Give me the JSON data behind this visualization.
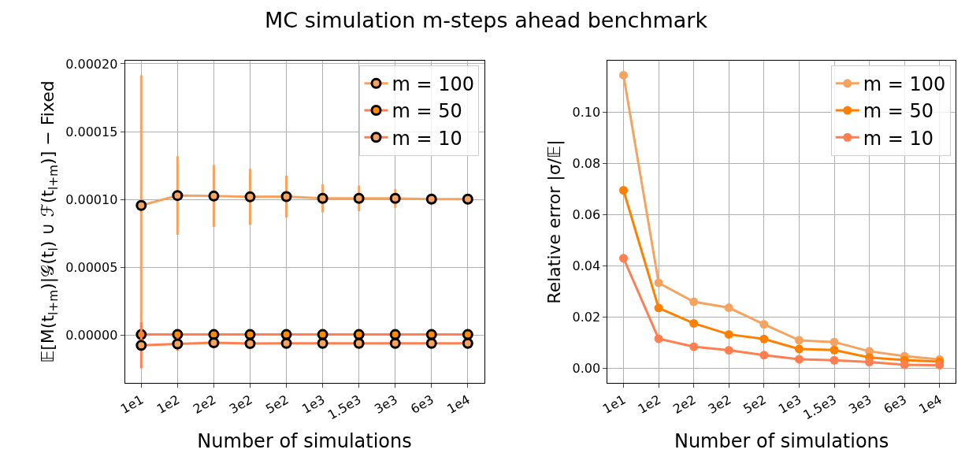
{
  "chart_data": [
    {
      "type": "line",
      "title": "MC simulation m-steps ahead benchmark",
      "xlabel": "Number of simulations",
      "ylabel": "𝔼[M(t$_{l+m}$)|𝒢(t$_{l}$) ∪ ℱ(t$_{l+m}$)] − Fixed",
      "categories": [
        "1e1",
        "1e2",
        "2e2",
        "3e2",
        "5e2",
        "1e3",
        "1.5e3",
        "3e3",
        "6e3",
        "1e4"
      ],
      "series": [
        {
          "name": "m = 100",
          "color": "#f4a460",
          "colors": [
            "#f4a460",
            "#f4a460",
            "#f4a460",
            "#f4a460",
            "#f4a460",
            "#f4a460",
            "#f4a460",
            "#f4a460",
            "#f4a460",
            "#f4a460"
          ],
          "values": [
            9.56e-05,
            0.0001029,
            0.0001025,
            0.0001019,
            0.0001021,
            0.0001008,
            0.0001008,
            0.0001008,
            0.0001002,
            0.0001002
          ],
          "errors": [
            9.6e-05,
            2.9e-05,
            2.28e-05,
            2.07e-05,
            1.54e-05,
            1.03e-05,
            9.4e-06,
            6.9e-06,
            1.5e-06,
            1.5e-06
          ]
        },
        {
          "name": "m = 50",
          "color": "#ff7f50",
          "colors": [
            "#ff8c00",
            "#ff8c00",
            "#ff8c00",
            "#ff8c00",
            "#ff8c00",
            "#ff8c00",
            "#ff8c00",
            "#ff8c00",
            "#ff8c00",
            "#ff8c00"
          ],
          "values": [
            4e-07,
            4e-07,
            4e-07,
            4e-07,
            4e-07,
            4e-07,
            4e-07,
            4e-07,
            4e-07,
            4e-07
          ]
        },
        {
          "name": "m = 10",
          "color": "#ff7f50",
          "colors": [
            "#f4a460",
            "#f4a460",
            "#f4a460",
            "#f4a460",
            "#f4a460",
            "#f4a460",
            "#f4a460",
            "#f4a460",
            "#f4a460",
            "#f4a460"
          ],
          "values": [
            -7.6e-06,
            -6.5e-06,
            -5.7e-06,
            -6.3e-06,
            -6.1e-06,
            -6.1e-06,
            -6.1e-06,
            -6.1e-06,
            -6.1e-06,
            -6.1e-06
          ],
          "errors": [
            1.7e-05,
            5e-06,
            null,
            null,
            null,
            null,
            null,
            null,
            null,
            null
          ]
        }
      ],
      "ylim": [
        -3.54e-05,
        0.0002024
      ],
      "yticks": [
        {
          "value": 0,
          "label": "0.00000"
        },
        {
          "value": 5e-05,
          "label": "0.00005"
        },
        {
          "value": 0.0001,
          "label": "0.00010"
        },
        {
          "value": 0.00015,
          "label": "0.00015"
        },
        {
          "value": 0.0002,
          "label": "0.00020"
        }
      ],
      "grid": true,
      "legend": "top right",
      "marker": "circle",
      "line_style": "solid"
    },
    {
      "type": "line",
      "xlabel": "Number of simulations",
      "ylabel": "Relative error |σ/𝔼|",
      "categories": [
        "1e1",
        "1e2",
        "2e2",
        "3e2",
        "5e2",
        "1e3",
        "1.5e3",
        "3e3",
        "6e3",
        "1e4"
      ],
      "series": [
        {
          "name": "m = 100",
          "color": "#f4a460",
          "values": [
            0.1144,
            0.0334,
            0.026,
            0.0237,
            0.0172,
            0.011,
            0.0103,
            0.0067,
            0.0048,
            0.0035
          ]
        },
        {
          "name": "m = 50",
          "color": "#ff8000",
          "values": [
            0.0695,
            0.0236,
            0.0176,
            0.0133,
            0.0115,
            0.0076,
            0.0072,
            0.0043,
            0.0033,
            0.0027
          ]
        },
        {
          "name": "m = 10",
          "color": "#ff7f50",
          "values": [
            0.043,
            0.0116,
            0.0085,
            0.0071,
            0.0052,
            0.0036,
            0.0032,
            0.0025,
            0.0014,
            0.0013
          ]
        }
      ],
      "ylim": [
        -0.0057,
        0.1201
      ],
      "yticks": [
        {
          "value": 0,
          "label": "0.00"
        },
        {
          "value": 0.02,
          "label": "0.02"
        },
        {
          "value": 0.04,
          "label": "0.04"
        },
        {
          "value": 0.06,
          "label": "0.06"
        },
        {
          "value": 0.08,
          "label": "0.08"
        },
        {
          "value": 0.1,
          "label": "0.10"
        }
      ],
      "grid": true,
      "legend": "top right",
      "marker": "circle",
      "line_style": "solid"
    }
  ]
}
